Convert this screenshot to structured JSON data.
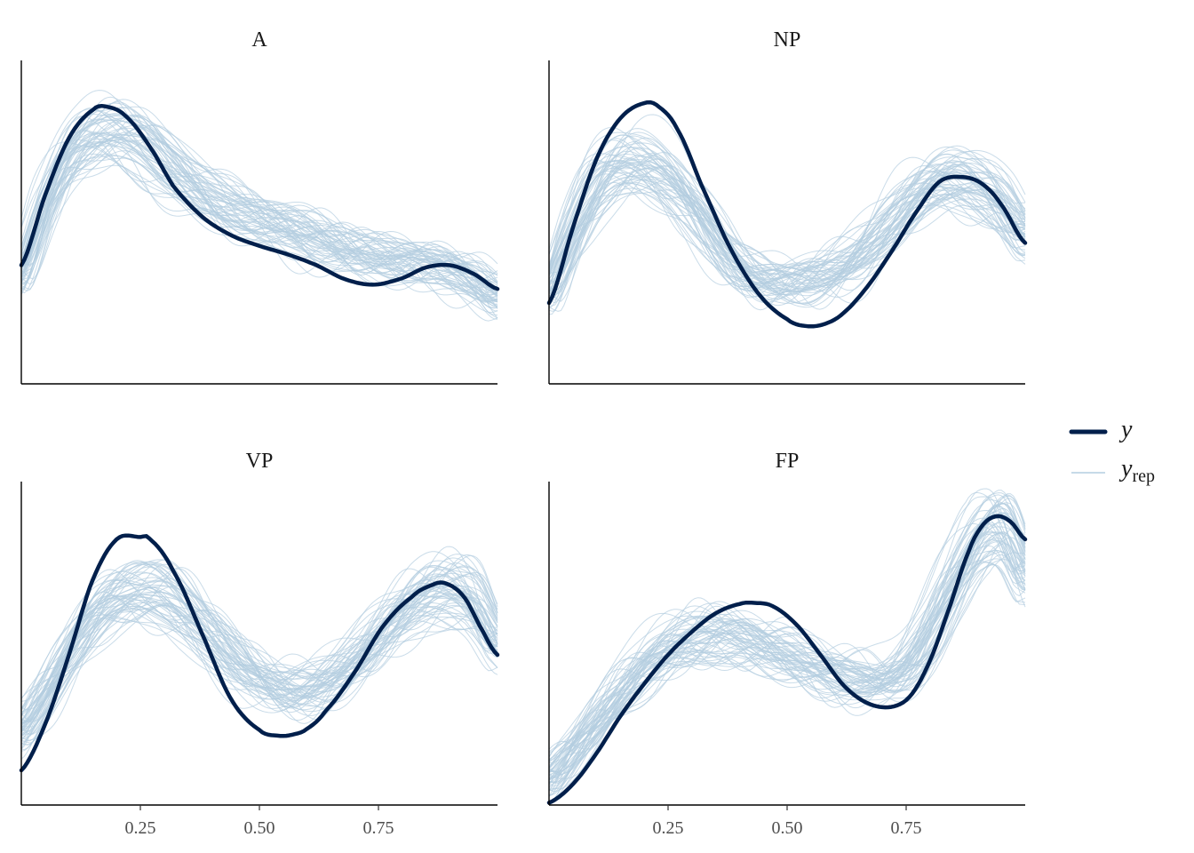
{
  "chart_data": {
    "type": "line",
    "xlim": [
      0,
      1
    ],
    "x_ticks": [
      "0.25",
      "0.50",
      "0.75"
    ],
    "x_tick_values": [
      0.25,
      0.5,
      0.75
    ],
    "colors": {
      "y": "#011f4b",
      "yrep": "#b3cde0"
    },
    "n_rep_draws": 60,
    "legend": {
      "position": "right",
      "entries": [
        {
          "key": "y",
          "label": "y",
          "subscript": ""
        },
        {
          "key": "yrep",
          "label": "y",
          "subscript": "rep"
        }
      ]
    },
    "panels": [
      {
        "title": "A",
        "ylim": [
          0,
          3.0
        ],
        "y": {
          "x": [
            0.0,
            0.05,
            0.1,
            0.15,
            0.18,
            0.22,
            0.27,
            0.32,
            0.38,
            0.44,
            0.5,
            0.56,
            0.62,
            0.68,
            0.74,
            0.8,
            0.85,
            0.9,
            0.95,
            1.0
          ],
          "y": [
            1.1,
            1.75,
            2.28,
            2.54,
            2.57,
            2.48,
            2.2,
            1.83,
            1.55,
            1.38,
            1.28,
            1.2,
            1.1,
            0.97,
            0.92,
            0.98,
            1.08,
            1.1,
            1.02,
            0.88
          ]
        },
        "yrep_mean": {
          "x": [
            0.0,
            0.05,
            0.1,
            0.15,
            0.2,
            0.25,
            0.3,
            0.35,
            0.4,
            0.45,
            0.5,
            0.55,
            0.6,
            0.65,
            0.7,
            0.75,
            0.8,
            0.85,
            0.9,
            0.95,
            1.0
          ],
          "y": [
            1.0,
            1.6,
            2.05,
            2.25,
            2.3,
            2.22,
            2.05,
            1.88,
            1.72,
            1.6,
            1.5,
            1.42,
            1.35,
            1.28,
            1.22,
            1.18,
            1.14,
            1.1,
            1.05,
            0.95,
            0.8
          ]
        }
      },
      {
        "title": "NP",
        "ylim": [
          0,
          2.8
        ],
        "y": {
          "x": [
            0.0,
            0.05,
            0.1,
            0.15,
            0.2,
            0.23,
            0.27,
            0.32,
            0.38,
            0.44,
            0.5,
            0.54,
            0.58,
            0.62,
            0.67,
            0.72,
            0.77,
            0.82,
            0.87,
            0.91,
            0.95,
            1.0
          ],
          "y": [
            0.7,
            1.35,
            1.95,
            2.3,
            2.43,
            2.4,
            2.2,
            1.72,
            1.18,
            0.78,
            0.56,
            0.5,
            0.52,
            0.62,
            0.85,
            1.15,
            1.48,
            1.75,
            1.79,
            1.73,
            1.55,
            1.22
          ]
        },
        "yrep_mean": {
          "x": [
            0.0,
            0.05,
            0.1,
            0.15,
            0.2,
            0.25,
            0.3,
            0.35,
            0.4,
            0.45,
            0.5,
            0.55,
            0.6,
            0.65,
            0.7,
            0.75,
            0.8,
            0.85,
            0.9,
            0.95,
            1.0
          ],
          "y": [
            0.8,
            1.3,
            1.72,
            1.9,
            1.9,
            1.78,
            1.55,
            1.28,
            1.05,
            0.92,
            0.88,
            0.9,
            0.97,
            1.1,
            1.3,
            1.52,
            1.7,
            1.78,
            1.75,
            1.6,
            1.32
          ]
        }
      },
      {
        "title": "VP",
        "ylim": [
          0,
          2.8
        ],
        "y": {
          "x": [
            0.0,
            0.05,
            0.1,
            0.15,
            0.2,
            0.25,
            0.27,
            0.32,
            0.38,
            0.44,
            0.5,
            0.54,
            0.57,
            0.6,
            0.64,
            0.7,
            0.76,
            0.82,
            0.86,
            0.89,
            0.93,
            0.97,
            1.0
          ],
          "y": [
            0.3,
            0.7,
            1.3,
            1.95,
            2.3,
            2.32,
            2.3,
            2.02,
            1.48,
            0.92,
            0.65,
            0.6,
            0.61,
            0.66,
            0.82,
            1.15,
            1.55,
            1.8,
            1.9,
            1.92,
            1.8,
            1.5,
            1.3
          ]
        },
        "yrep_mean": {
          "x": [
            0.0,
            0.05,
            0.1,
            0.15,
            0.2,
            0.25,
            0.3,
            0.35,
            0.4,
            0.45,
            0.5,
            0.55,
            0.6,
            0.65,
            0.7,
            0.75,
            0.8,
            0.85,
            0.9,
            0.95,
            1.0
          ],
          "y": [
            0.65,
            0.95,
            1.3,
            1.6,
            1.77,
            1.82,
            1.78,
            1.62,
            1.42,
            1.22,
            1.08,
            1.0,
            1.0,
            1.06,
            1.22,
            1.45,
            1.66,
            1.8,
            1.84,
            1.72,
            1.36
          ]
        }
      },
      {
        "title": "FP",
        "ylim": [
          0,
          2.8
        ],
        "y": {
          "x": [
            0.0,
            0.05,
            0.1,
            0.15,
            0.2,
            0.25,
            0.3,
            0.35,
            0.4,
            0.43,
            0.47,
            0.52,
            0.57,
            0.62,
            0.67,
            0.72,
            0.76,
            0.8,
            0.84,
            0.88,
            0.91,
            0.94,
            0.97,
            1.0
          ],
          "y": [
            0.02,
            0.18,
            0.45,
            0.77,
            1.05,
            1.3,
            1.5,
            1.66,
            1.74,
            1.75,
            1.72,
            1.56,
            1.3,
            1.03,
            0.88,
            0.85,
            0.95,
            1.25,
            1.7,
            2.18,
            2.42,
            2.5,
            2.45,
            2.3
          ]
        },
        "yrep_mean": {
          "x": [
            0.0,
            0.05,
            0.1,
            0.15,
            0.2,
            0.25,
            0.3,
            0.35,
            0.4,
            0.45,
            0.5,
            0.55,
            0.6,
            0.65,
            0.7,
            0.75,
            0.8,
            0.85,
            0.9,
            0.93,
            0.96,
            1.0
          ],
          "y": [
            0.22,
            0.45,
            0.72,
            0.98,
            1.18,
            1.33,
            1.42,
            1.45,
            1.44,
            1.38,
            1.3,
            1.2,
            1.12,
            1.07,
            1.08,
            1.2,
            1.48,
            1.9,
            2.28,
            2.4,
            2.36,
            2.0
          ]
        }
      }
    ]
  }
}
